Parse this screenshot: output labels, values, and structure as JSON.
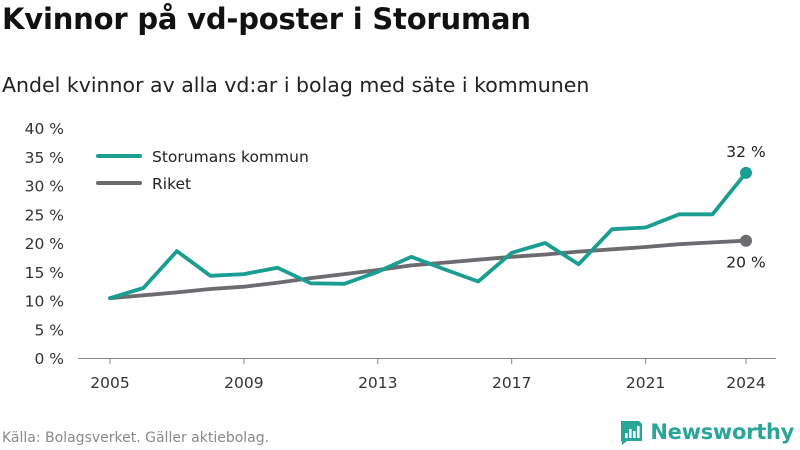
{
  "title": "Kvinnor på vd-poster i Storuman",
  "subtitle": "Andel kvinnor av alla vd:ar i bolag med säte i kommunen",
  "source": "Källa: Bolagsverket. Gäller aktiebolag.",
  "brand": {
    "name": "Newsworthy",
    "icon": "newsworthy-logo-icon",
    "color": "#2aa599"
  },
  "chart_data": {
    "type": "line",
    "x": [
      2005,
      2006,
      2007,
      2008,
      2009,
      2010,
      2011,
      2012,
      2013,
      2014,
      2015,
      2016,
      2017,
      2018,
      2019,
      2020,
      2021,
      2022,
      2023,
      2024
    ],
    "series": [
      {
        "name": "Storumans kommun",
        "color": "#1a9e92",
        "values": [
          10.4,
          12.2,
          18.6,
          14.3,
          14.6,
          15.7,
          13.0,
          12.9,
          15.0,
          17.6,
          15.4,
          13.3,
          18.3,
          20.0,
          16.3,
          22.4,
          22.7,
          25.0,
          25.0,
          32.2
        ],
        "end_label": "32 %"
      },
      {
        "name": "Riket",
        "color": "#6b6b70",
        "values": [
          10.4,
          10.9,
          11.4,
          12.0,
          12.4,
          13.1,
          13.9,
          14.6,
          15.3,
          16.1,
          16.6,
          17.1,
          17.6,
          18.0,
          18.5,
          18.9,
          19.3,
          19.8,
          20.1,
          20.4
        ],
        "end_label": "20 %"
      }
    ],
    "xticks": [
      2005,
      2009,
      2013,
      2017,
      2021,
      2024
    ],
    "yticks": [
      0,
      5,
      10,
      15,
      20,
      25,
      30,
      35,
      40
    ],
    "ytick_labels": [
      "0 %",
      "5 %",
      "10 %",
      "15 %",
      "20 %",
      "25 %",
      "30 %",
      "35 %",
      "40 %"
    ],
    "ylim": [
      0,
      40
    ],
    "xlim": [
      2005,
      2024
    ],
    "grid": false,
    "legend_position": "top-left"
  }
}
